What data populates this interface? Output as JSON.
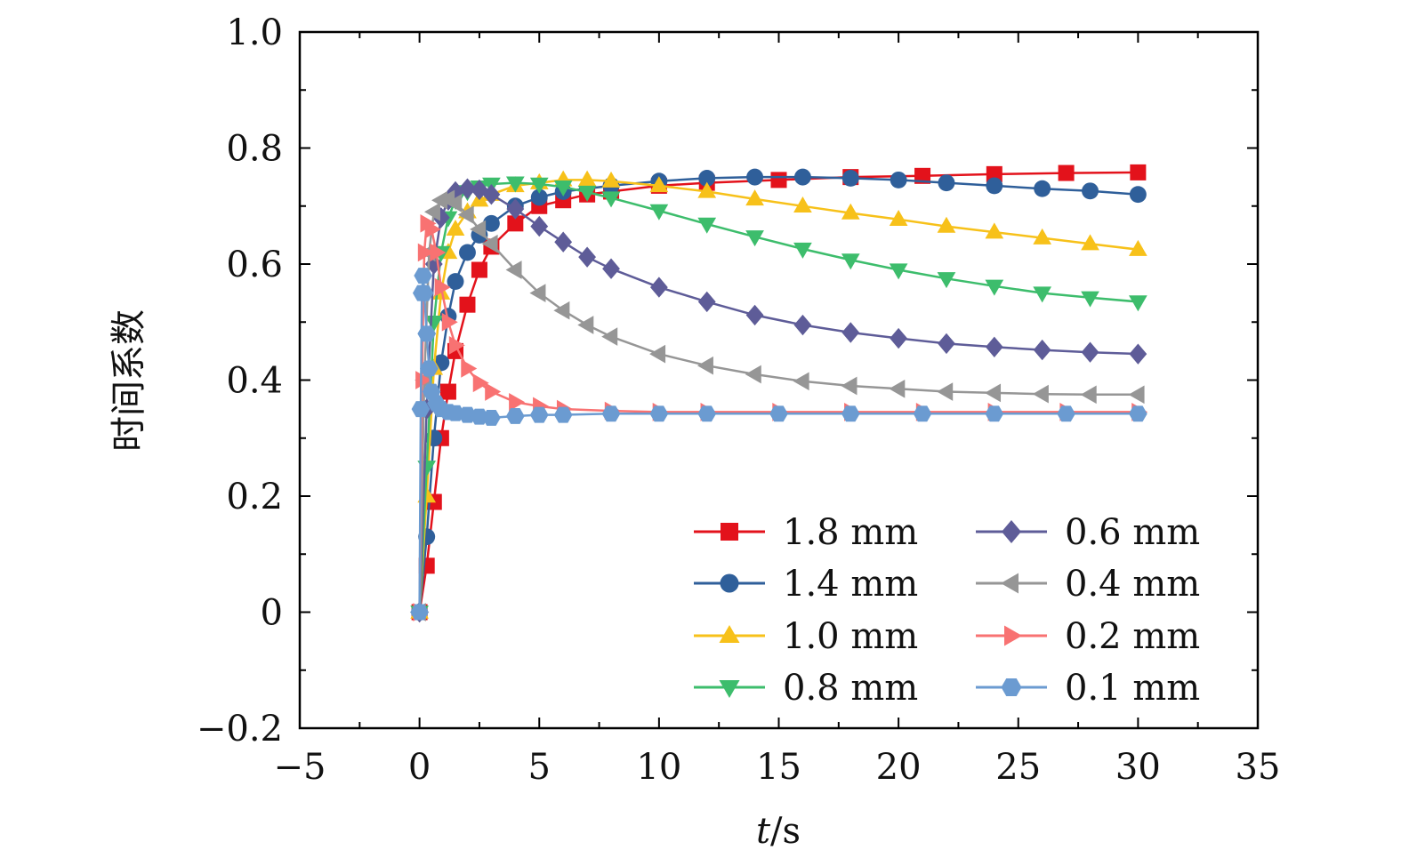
{
  "chart_data": {
    "type": "line",
    "title": "",
    "xlabel": "t/s",
    "ylabel": "时间系数",
    "xlim": [
      -5,
      35
    ],
    "ylim": [
      -0.2,
      1.0
    ],
    "xticks": [
      -5,
      0,
      5,
      10,
      15,
      20,
      25,
      30,
      35
    ],
    "xtick_labels": [
      "−5",
      "0",
      "5",
      "10",
      "15",
      "20",
      "25",
      "30",
      "35"
    ],
    "yticks": [
      -0.2,
      0,
      0.2,
      0.4,
      0.6,
      0.8,
      1.0
    ],
    "ytick_labels": [
      "−0.2",
      "0",
      "0.2",
      "0.4",
      "0.6",
      "0.8",
      "1.0"
    ],
    "grid": false,
    "legend": "bottom-right",
    "series": [
      {
        "name": "1.8 mm",
        "color": "#e3121b",
        "marker": "square",
        "x": [
          0,
          0.3,
          0.6,
          0.9,
          1.2,
          1.5,
          2,
          2.5,
          3,
          4,
          5,
          6,
          7,
          8,
          10,
          12,
          15,
          18,
          21,
          24,
          27,
          30
        ],
        "y": [
          0,
          0.08,
          0.19,
          0.3,
          0.38,
          0.45,
          0.53,
          0.59,
          0.63,
          0.67,
          0.7,
          0.71,
          0.72,
          0.725,
          0.735,
          0.74,
          0.745,
          0.75,
          0.752,
          0.755,
          0.757,
          0.758
        ]
      },
      {
        "name": "1.4 mm",
        "color": "#2f5f9a",
        "marker": "circle",
        "x": [
          0,
          0.3,
          0.6,
          0.9,
          1.2,
          1.5,
          2,
          2.5,
          3,
          4,
          5,
          6,
          8,
          10,
          12,
          14,
          16,
          18,
          20,
          22,
          24,
          26,
          28,
          30
        ],
        "y": [
          0,
          0.13,
          0.3,
          0.43,
          0.51,
          0.57,
          0.62,
          0.65,
          0.67,
          0.7,
          0.715,
          0.725,
          0.735,
          0.743,
          0.748,
          0.75,
          0.75,
          0.748,
          0.745,
          0.74,
          0.735,
          0.73,
          0.726,
          0.72
        ]
      },
      {
        "name": "1.0 mm",
        "color": "#f7c11a",
        "marker": "triangle-up",
        "x": [
          0,
          0.3,
          0.6,
          0.9,
          1.2,
          1.5,
          2,
          2.5,
          3,
          4,
          5,
          6,
          7,
          8,
          10,
          12,
          14,
          16,
          18,
          20,
          22,
          24,
          26,
          28,
          30
        ],
        "y": [
          0,
          0.2,
          0.42,
          0.55,
          0.62,
          0.66,
          0.69,
          0.71,
          0.72,
          0.735,
          0.74,
          0.745,
          0.745,
          0.743,
          0.735,
          0.725,
          0.712,
          0.7,
          0.688,
          0.677,
          0.665,
          0.655,
          0.645,
          0.635,
          0.625
        ]
      },
      {
        "name": "0.8 mm",
        "color": "#3dbd6c",
        "marker": "triangle-down",
        "x": [
          0,
          0.3,
          0.6,
          0.9,
          1.2,
          1.5,
          2,
          2.5,
          3,
          4,
          5,
          6,
          7,
          8,
          10,
          12,
          14,
          16,
          18,
          20,
          22,
          24,
          26,
          28,
          30
        ],
        "y": [
          0,
          0.25,
          0.5,
          0.62,
          0.68,
          0.71,
          0.725,
          0.733,
          0.738,
          0.74,
          0.738,
          0.733,
          0.724,
          0.714,
          0.692,
          0.669,
          0.647,
          0.626,
          0.607,
          0.59,
          0.575,
          0.562,
          0.55,
          0.542,
          0.535
        ]
      },
      {
        "name": "0.6 mm",
        "color": "#5e5c98",
        "marker": "diamond",
        "x": [
          0,
          0.3,
          0.6,
          0.9,
          1.2,
          1.5,
          2,
          2.5,
          3,
          4,
          5,
          6,
          7,
          8,
          10,
          12,
          14,
          16,
          18,
          20,
          22,
          24,
          26,
          28,
          30
        ],
        "y": [
          0,
          0.35,
          0.6,
          0.68,
          0.71,
          0.725,
          0.73,
          0.728,
          0.72,
          0.695,
          0.665,
          0.638,
          0.612,
          0.592,
          0.56,
          0.535,
          0.512,
          0.495,
          0.482,
          0.472,
          0.463,
          0.457,
          0.452,
          0.448,
          0.445
        ]
      },
      {
        "name": "0.4 mm",
        "color": "#969696",
        "marker": "triangle-left",
        "x": [
          0,
          0.2,
          0.4,
          0.6,
          0.9,
          1.2,
          1.5,
          2,
          2.5,
          3,
          4,
          5,
          6,
          7,
          8,
          10,
          12,
          14,
          16,
          18,
          20,
          22,
          24,
          26,
          28,
          30
        ],
        "y": [
          0,
          0.4,
          0.62,
          0.69,
          0.71,
          0.712,
          0.705,
          0.685,
          0.66,
          0.635,
          0.59,
          0.55,
          0.52,
          0.495,
          0.475,
          0.445,
          0.425,
          0.41,
          0.398,
          0.39,
          0.385,
          0.38,
          0.378,
          0.376,
          0.375,
          0.375
        ]
      },
      {
        "name": "0.2 mm",
        "color": "#f87272",
        "marker": "triangle-right",
        "x": [
          0,
          0.1,
          0.2,
          0.3,
          0.5,
          0.7,
          0.9,
          1.2,
          1.5,
          2,
          2.5,
          3,
          4,
          5,
          6,
          8,
          10,
          12,
          15,
          18,
          21,
          24,
          27,
          30
        ],
        "y": [
          0,
          0.4,
          0.62,
          0.67,
          0.66,
          0.62,
          0.56,
          0.5,
          0.46,
          0.42,
          0.395,
          0.38,
          0.362,
          0.355,
          0.35,
          0.347,
          0.345,
          0.345,
          0.345,
          0.345,
          0.345,
          0.345,
          0.345,
          0.345
        ]
      },
      {
        "name": "0.1 mm",
        "color": "#6b9bd1",
        "marker": "hexagon",
        "x": [
          0,
          0.05,
          0.1,
          0.15,
          0.2,
          0.3,
          0.4,
          0.5,
          0.7,
          0.9,
          1.2,
          1.5,
          2,
          2.5,
          3,
          4,
          5,
          6,
          8,
          10,
          12,
          15,
          18,
          21,
          24,
          27,
          30
        ],
        "y": [
          0,
          0.35,
          0.55,
          0.58,
          0.55,
          0.48,
          0.42,
          0.38,
          0.36,
          0.35,
          0.345,
          0.343,
          0.34,
          0.337,
          0.335,
          0.338,
          0.34,
          0.34,
          0.342,
          0.342,
          0.342,
          0.342,
          0.342,
          0.342,
          0.342,
          0.342,
          0.342
        ]
      }
    ]
  }
}
